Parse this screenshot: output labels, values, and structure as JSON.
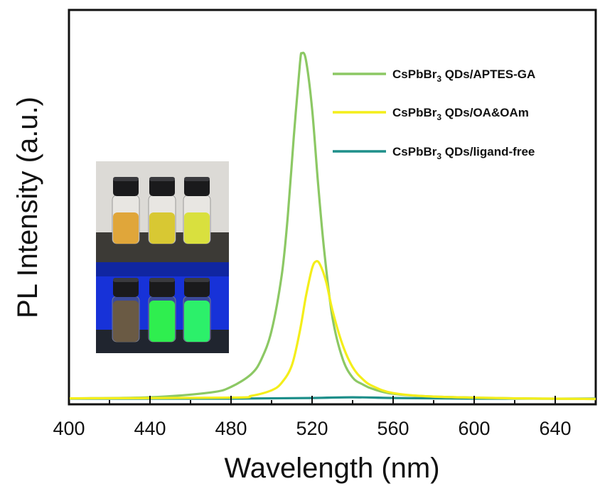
{
  "chart_data": {
    "type": "line",
    "title": "",
    "xlabel": "Wavelength (nm)",
    "ylabel": "PL Intensity (a.u.)",
    "xlim": [
      400,
      660
    ],
    "ylim": [
      0,
      1.05
    ],
    "xticks": [
      400,
      440,
      480,
      520,
      560,
      600,
      640
    ],
    "yticks_shown": false,
    "grid": false,
    "legend_position": "top-right",
    "series": [
      {
        "name": "CsPbBr3 QDs/APTES-GA",
        "label_main": "CsPbBr",
        "label_sub": "3",
        "label_rest": " QDs/APTES-GA",
        "color": "#8cc864",
        "x": [
          400,
          440,
          470,
          480,
          490,
          495,
          500,
          505,
          508,
          511,
          514,
          515,
          517,
          520,
          523,
          526,
          530,
          535,
          540,
          545,
          550,
          560,
          580,
          620,
          660
        ],
        "y": [
          0.005,
          0.008,
          0.022,
          0.038,
          0.075,
          0.118,
          0.2,
          0.36,
          0.53,
          0.76,
          0.97,
          1.0,
          0.98,
          0.84,
          0.62,
          0.43,
          0.24,
          0.12,
          0.065,
          0.045,
          0.032,
          0.018,
          0.01,
          0.005,
          0.003
        ]
      },
      {
        "name": "CsPbBr3 QDs/OA&OAm",
        "label_main": "CsPbBr",
        "label_sub": "3",
        "label_rest": " QDs/OA&OAm",
        "color": "#f4ee1a",
        "x": [
          400,
          480,
          490,
          500,
          505,
          510,
          514,
          517,
          520,
          522,
          524,
          527,
          530,
          535,
          540,
          545,
          550,
          560,
          580,
          620,
          660
        ],
        "y": [
          0.005,
          0.007,
          0.012,
          0.028,
          0.05,
          0.1,
          0.2,
          0.3,
          0.38,
          0.4,
          0.39,
          0.34,
          0.26,
          0.16,
          0.095,
          0.06,
          0.04,
          0.02,
          0.01,
          0.005,
          0.003
        ]
      },
      {
        "name": "CsPbBr3 QDs/ligand-free",
        "label_main": "CsPbBr",
        "label_sub": "3",
        "label_rest": " QDs/ligand-free",
        "color": "#1e8f8a",
        "x": [
          400,
          480,
          520,
          540,
          560,
          600,
          660
        ],
        "y": [
          0.004,
          0.004,
          0.006,
          0.008,
          0.006,
          0.004,
          0.004
        ]
      }
    ],
    "inset": {
      "type": "photo",
      "description_visible": false,
      "panels": [
        {
          "background": "#dcdad6",
          "bench": "#3c3a36",
          "vials": [
            "#e0a63a",
            "#d8c833",
            "#d9e03e"
          ]
        },
        {
          "background": "#1732d8",
          "bench": "#20252f",
          "vials": [
            "#6a5a44",
            "#2fee4f",
            "#2cf06a"
          ]
        }
      ]
    }
  }
}
